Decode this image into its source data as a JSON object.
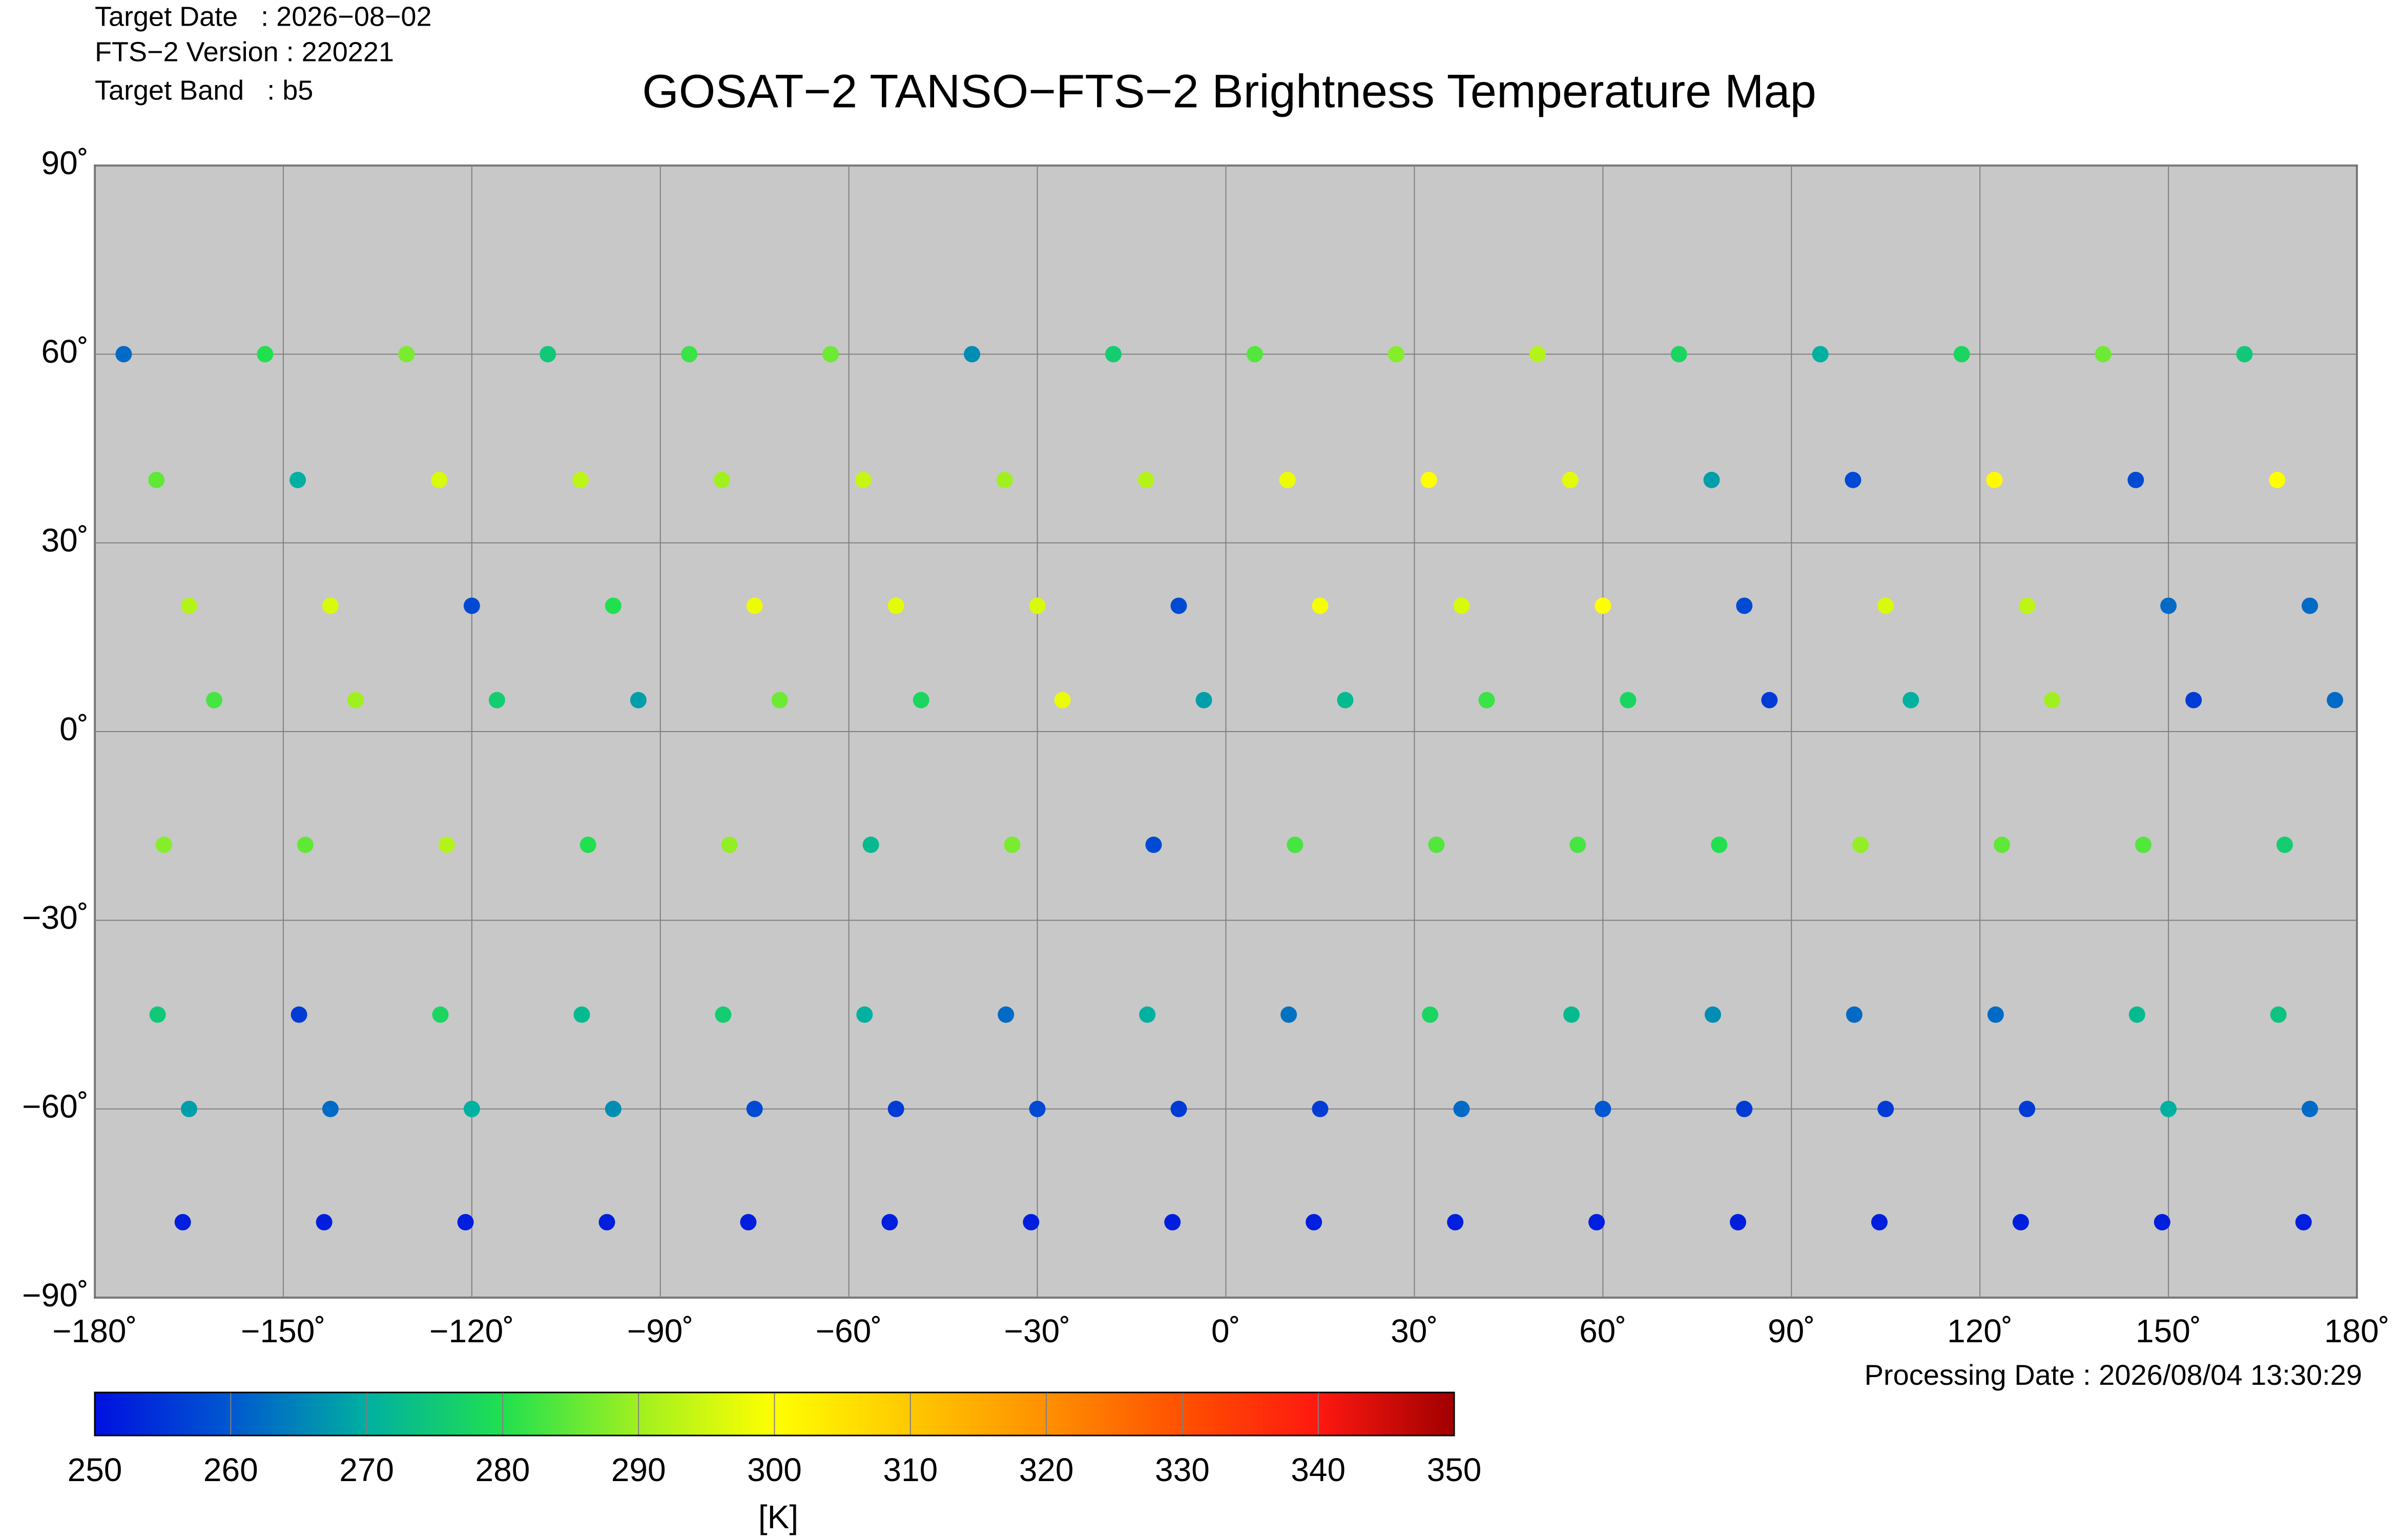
{
  "chart_data": {
    "type": "scatter",
    "header": [
      "Target Date   : 2026−08−02",
      "FTS−2 Version : 220221",
      "Target Band   : b5"
    ],
    "title": "GOSAT−2 TANSO−FTS−2 Brightness Temperature Map",
    "processing_date": "Processing Date : 2026/08/04 13:30:29",
    "xlim": [
      -180,
      180
    ],
    "ylim": [
      -90,
      90
    ],
    "xticks": [
      {
        "value": -180,
        "label": "−180˚"
      },
      {
        "value": -150,
        "label": "−150˚"
      },
      {
        "value": -120,
        "label": "−120˚"
      },
      {
        "value": -90,
        "label": "−90˚"
      },
      {
        "value": -60,
        "label": "−60˚"
      },
      {
        "value": -30,
        "label": "−30˚"
      },
      {
        "value": 0,
        "label": "0˚"
      },
      {
        "value": 30,
        "label": "30˚"
      },
      {
        "value": 60,
        "label": "60˚"
      },
      {
        "value": 90,
        "label": "90˚"
      },
      {
        "value": 120,
        "label": "120˚"
      },
      {
        "value": 150,
        "label": "150˚"
      },
      {
        "value": 180,
        "label": "180˚"
      }
    ],
    "yticks": [
      {
        "value": -90,
        "label": "−90˚"
      },
      {
        "value": -60,
        "label": "−60˚"
      },
      {
        "value": -30,
        "label": "−30˚"
      },
      {
        "value": 0,
        "label": "0˚"
      },
      {
        "value": 30,
        "label": "30˚"
      },
      {
        "value": 60,
        "label": "60˚"
      },
      {
        "value": 90,
        "label": "90˚"
      }
    ],
    "grid": true,
    "x": [
      -175.4,
      -170.2,
      -165,
      -161,
      -169,
      -170,
      -165,
      -166,
      -152.9,
      -147.7,
      -142.5,
      -138.5,
      -146.5,
      -147.5,
      -142.5,
      -143.5,
      -130.4,
      -125.2,
      -120,
      -116,
      -124,
      -125,
      -120,
      -121,
      -107.9,
      -102.7,
      -97.5,
      -93.5,
      -101.5,
      -102.5,
      -97.5,
      -98.5,
      -85.4,
      -80.2,
      -75,
      -71,
      -79,
      -80,
      -75,
      -76,
      -62.9,
      -57.7,
      -52.5,
      -48.5,
      -56.5,
      -57.5,
      -52.5,
      -53.5,
      -40.4,
      -35.2,
      -30,
      -26,
      -34,
      -35,
      -30,
      -31,
      -17.9,
      -12.7,
      -7.5,
      -3.5,
      -11.5,
      -12.5,
      -7.5,
      -8.5,
      4.6,
      9.8,
      15,
      19,
      11,
      10,
      15,
      14,
      27.1,
      32.3,
      37.5,
      41.5,
      33.5,
      32.5,
      37.5,
      36.5,
      49.6,
      54.8,
      60,
      64,
      56,
      55,
      60,
      59,
      72.1,
      77.3,
      82.5,
      86.5,
      78.5,
      77.5,
      82.5,
      81.5,
      94.6,
      99.8,
      105,
      109,
      101,
      100,
      105,
      104,
      117.1,
      122.3,
      127.5,
      131.5,
      123.5,
      122.5,
      127.5,
      126.5,
      139.6,
      144.8,
      150,
      154,
      146,
      145,
      150,
      149,
      162.1,
      167.3,
      172.5,
      176.5,
      168.5,
      167.5,
      172.5,
      171.5
    ],
    "y": [
      60,
      40,
      20,
      5,
      -18,
      -45,
      -60,
      -78,
      60,
      40,
      20,
      5,
      -18,
      -45,
      -60,
      -78,
      60,
      40,
      20,
      5,
      -18,
      -45,
      -60,
      -78,
      60,
      40,
      20,
      5,
      -18,
      -45,
      -60,
      -78,
      60,
      40,
      20,
      5,
      -18,
      -45,
      -60,
      -78,
      60,
      40,
      20,
      5,
      -18,
      -45,
      -60,
      -78,
      60,
      40,
      20,
      5,
      -18,
      -45,
      -60,
      -78,
      60,
      40,
      20,
      5,
      -18,
      -45,
      -60,
      -78,
      60,
      40,
      20,
      5,
      -18,
      -45,
      -60,
      -78,
      60,
      40,
      20,
      5,
      -18,
      -45,
      -60,
      -78,
      60,
      40,
      20,
      5,
      -18,
      -45,
      -60,
      -78,
      60,
      40,
      20,
      5,
      -18,
      -45,
      -60,
      -78,
      60,
      40,
      20,
      5,
      -18,
      -45,
      -60,
      -78,
      60,
      40,
      20,
      5,
      -18,
      -45,
      -60,
      -78,
      60,
      40,
      20,
      5,
      -18,
      -45,
      -60,
      -78,
      60,
      40,
      20,
      5,
      -18,
      -45,
      -60,
      -78
    ],
    "values": [
      262,
      285,
      292,
      283,
      288,
      275,
      268,
      252,
      280,
      270,
      296,
      290,
      285,
      256,
      262,
      252,
      287,
      296,
      258,
      276,
      292,
      278,
      270,
      252,
      275,
      293,
      280,
      268,
      280,
      272,
      266,
      252,
      282,
      290,
      298,
      286,
      289,
      276,
      258,
      252,
      286,
      294,
      297,
      278,
      272,
      270,
      256,
      252,
      266,
      290,
      296,
      298,
      287,
      262,
      258,
      252,
      276,
      292,
      258,
      268,
      258,
      270,
      256,
      252,
      284,
      298,
      299,
      272,
      283,
      263,
      256,
      252,
      288,
      300,
      296,
      282,
      284,
      278,
      262,
      252,
      292,
      297,
      300,
      278,
      283,
      272,
      260,
      252,
      278,
      268,
      258,
      256,
      280,
      266,
      256,
      252,
      270,
      258,
      296,
      270,
      289,
      262,
      256,
      252,
      278,
      301,
      293,
      290,
      285,
      262,
      256,
      252,
      286,
      258,
      262,
      256,
      284,
      272,
      270,
      252,
      275,
      300,
      262,
      262,
      276,
      274,
      262,
      252
    ],
    "colorbar": {
      "label": "[K]",
      "lim": [
        250,
        350
      ],
      "ticks": [
        250,
        260,
        270,
        280,
        290,
        300,
        310,
        320,
        330,
        340,
        350
      ],
      "colors": [
        "#0010e0",
        "#0058d0",
        "#00b0a0",
        "#20e050",
        "#a0f020",
        "#ffff00",
        "#ffc800",
        "#ff9000",
        "#ff5000",
        "#ff1810",
        "#a00000"
      ]
    }
  }
}
